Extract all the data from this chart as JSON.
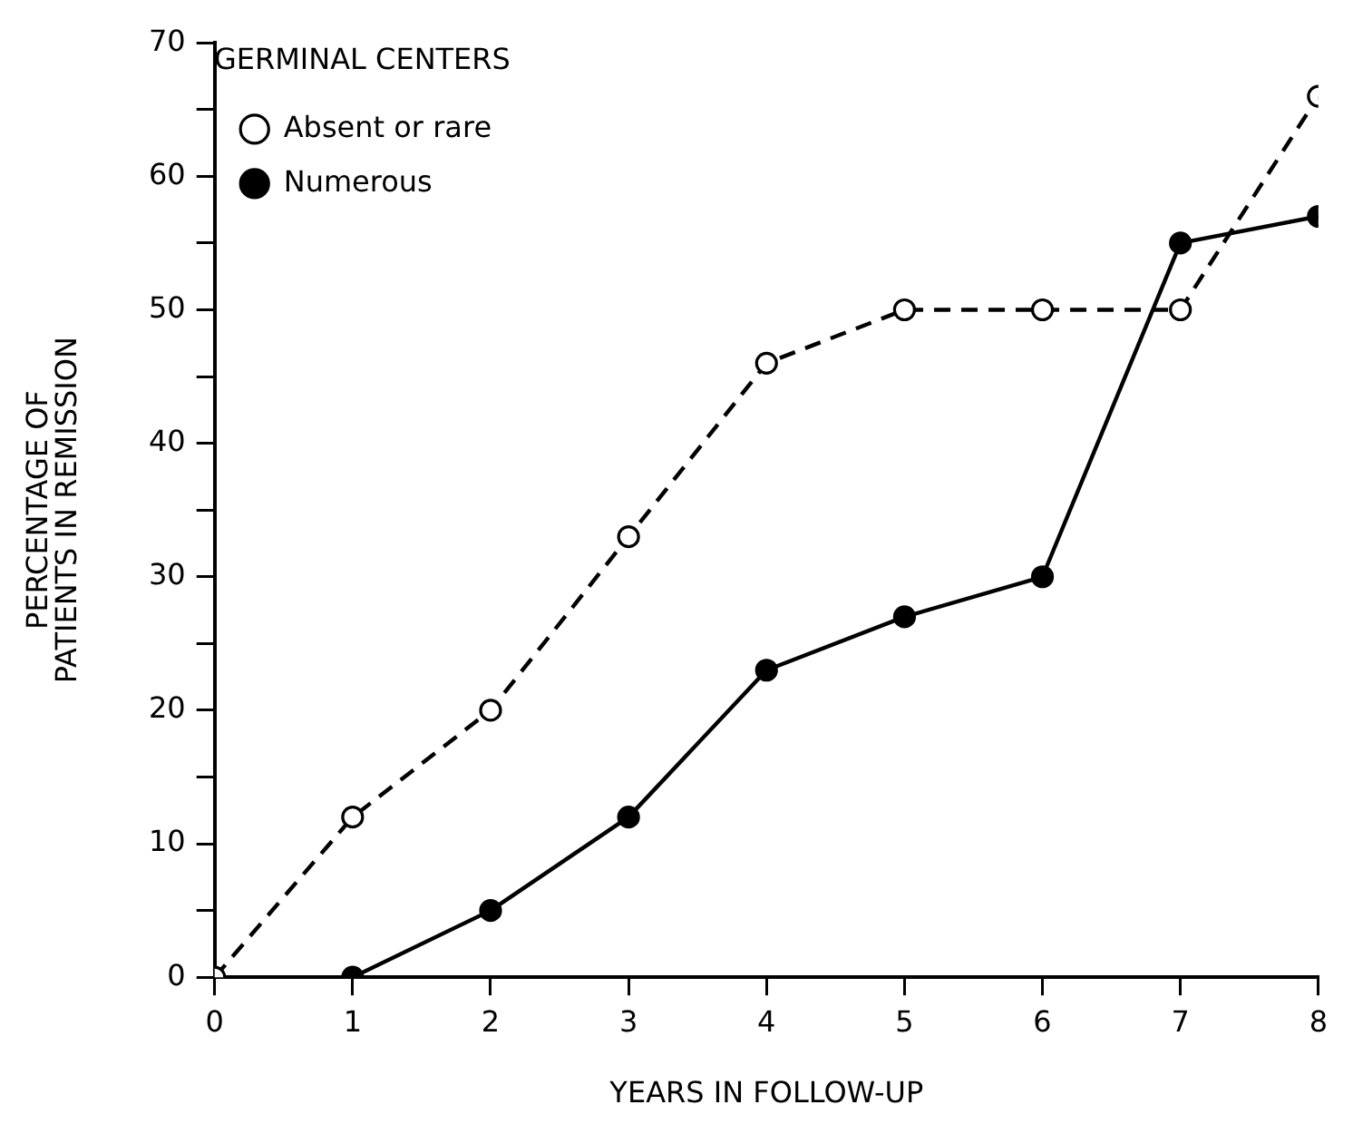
{
  "chart_data": {
    "type": "line",
    "xlabel": "YEARS IN FOLLOW-UP",
    "ylabel": "PERCENTAGE OF\nPATIENTS IN REMISSION",
    "legend_title": "GERMINAL CENTERS",
    "legend": "top left",
    "grid": false,
    "marker": "circle",
    "xlim": [
      0,
      8
    ],
    "xticks": [
      0,
      1,
      2,
      3,
      4,
      5,
      6,
      7,
      8
    ],
    "ylim": [
      0,
      70
    ],
    "yticks": [
      0,
      {
        "value": 5,
        "label": null
      },
      10,
      {
        "value": 15,
        "label": null
      },
      20,
      {
        "value": 25,
        "label": null
      },
      30,
      {
        "value": 35,
        "label": null
      },
      40,
      {
        "value": 45,
        "label": null
      },
      50,
      {
        "value": 55,
        "label": null
      },
      60,
      {
        "value": 65,
        "label": null
      },
      70
    ],
    "series": [
      {
        "name": "Absent or rare",
        "color": "#000000",
        "line_style": "dashed",
        "x": [
          0,
          1,
          2,
          3,
          4,
          5,
          6,
          7,
          8
        ],
        "values": [
          0,
          12,
          20,
          33,
          46,
          50,
          50,
          50,
          66
        ]
      },
      {
        "name": "Numerous",
        "color": "#000000",
        "line_style": "solid",
        "x": [
          1,
          2,
          3,
          4,
          5,
          6,
          7,
          8
        ],
        "values": [
          0,
          5,
          12,
          23,
          27,
          30,
          55,
          57
        ]
      }
    ]
  }
}
